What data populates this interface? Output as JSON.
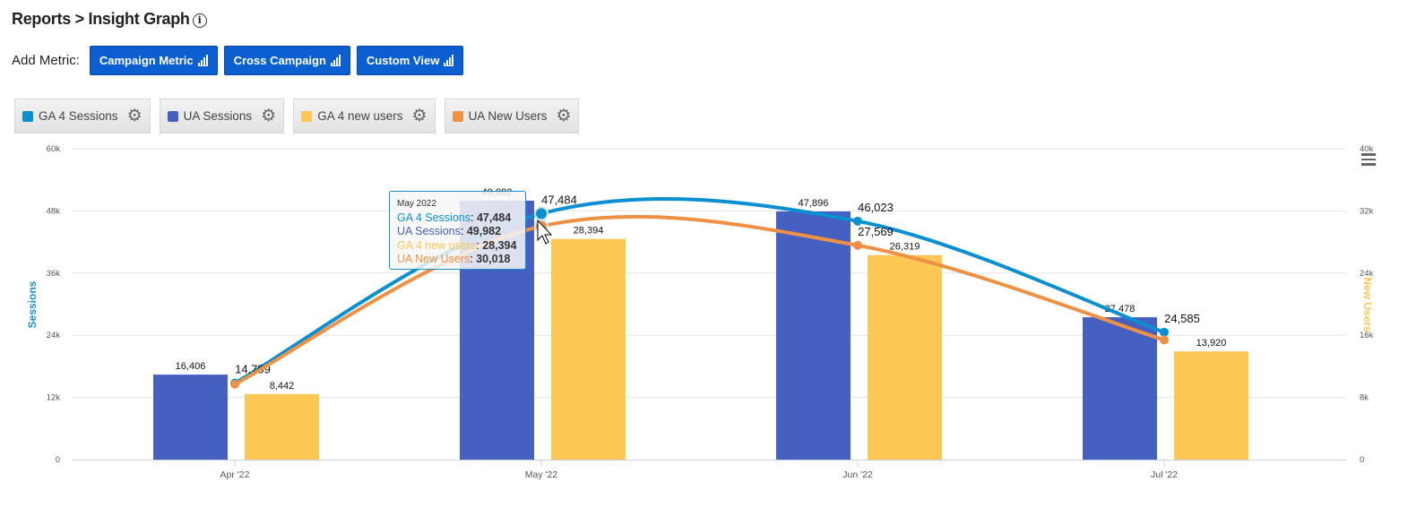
{
  "header": {
    "title": "Reports > Insight Graph",
    "info_icon": "info-circle-icon"
  },
  "add_metric": {
    "label": "Add Metric:",
    "buttons": [
      {
        "label": "Campaign Metric",
        "icon": "bar-chart-icon"
      },
      {
        "label": "Cross Campaign",
        "icon": "bar-chart-icon"
      },
      {
        "label": "Custom View",
        "icon": "bar-chart-icon"
      }
    ]
  },
  "legend": [
    {
      "label": "GA 4 Sessions",
      "color": "#0a8fd0"
    },
    {
      "label": "UA Sessions",
      "color": "#4560c0"
    },
    {
      "label": "GA 4 new users",
      "color": "#fdc753"
    },
    {
      "label": "UA New Users",
      "color": "#ef9145"
    }
  ],
  "tooltip": {
    "title": "May 2022",
    "rows": [
      {
        "label": "GA 4 Sessions",
        "value": "47,484",
        "color": "#0a8fd0"
      },
      {
        "label": "UA Sessions",
        "value": "49,982",
        "color": "#4560c0"
      },
      {
        "label": "GA 4 new users",
        "value": "28,394",
        "color": "#fdc753"
      },
      {
        "label": "UA New Users",
        "value": "30,018",
        "color": "#ef9145"
      }
    ]
  },
  "chart_data": {
    "type": "bar",
    "categories": [
      "Apr '22",
      "May '22",
      "Jun '22",
      "Jul '22"
    ],
    "y_left": {
      "label": "Sessions",
      "range": [
        0,
        60000
      ],
      "ticks": [
        "0",
        "12k",
        "24k",
        "36k",
        "48k",
        "60k"
      ],
      "color": "#1a8fd0"
    },
    "y_right": {
      "label": "New Users",
      "range": [
        0,
        40000
      ],
      "ticks": [
        "0",
        "8k",
        "16k",
        "24k",
        "32k",
        "40k"
      ],
      "color": "#fdc753"
    },
    "grid": true,
    "series": [
      {
        "name": "UA Sessions",
        "type": "bar",
        "axis": "left",
        "color": "#4560c0",
        "values": [
          16406,
          49982,
          47896,
          27478
        ],
        "labels": [
          "16,406",
          "49,982",
          "47,896",
          "27,478"
        ]
      },
      {
        "name": "GA 4 new users",
        "type": "bar",
        "axis": "right",
        "color": "#fdc753",
        "values": [
          8442,
          28394,
          26319,
          13920
        ],
        "labels": [
          "8,442",
          "28,394",
          "26,319",
          "13,920"
        ]
      },
      {
        "name": "GA 4 Sessions",
        "type": "spline",
        "axis": "left",
        "color": "#0a8fd0",
        "values": [
          14759,
          47484,
          46023,
          24585
        ],
        "labels": [
          "14,759",
          "47,484",
          "46,023",
          "24,585"
        ]
      },
      {
        "name": "UA New Users",
        "type": "spline",
        "axis": "right",
        "color": "#ef9145",
        "values": [
          9700,
          30018,
          27569,
          15400
        ],
        "labels": [
          "",
          "",
          "27,569",
          ""
        ]
      }
    ]
  }
}
